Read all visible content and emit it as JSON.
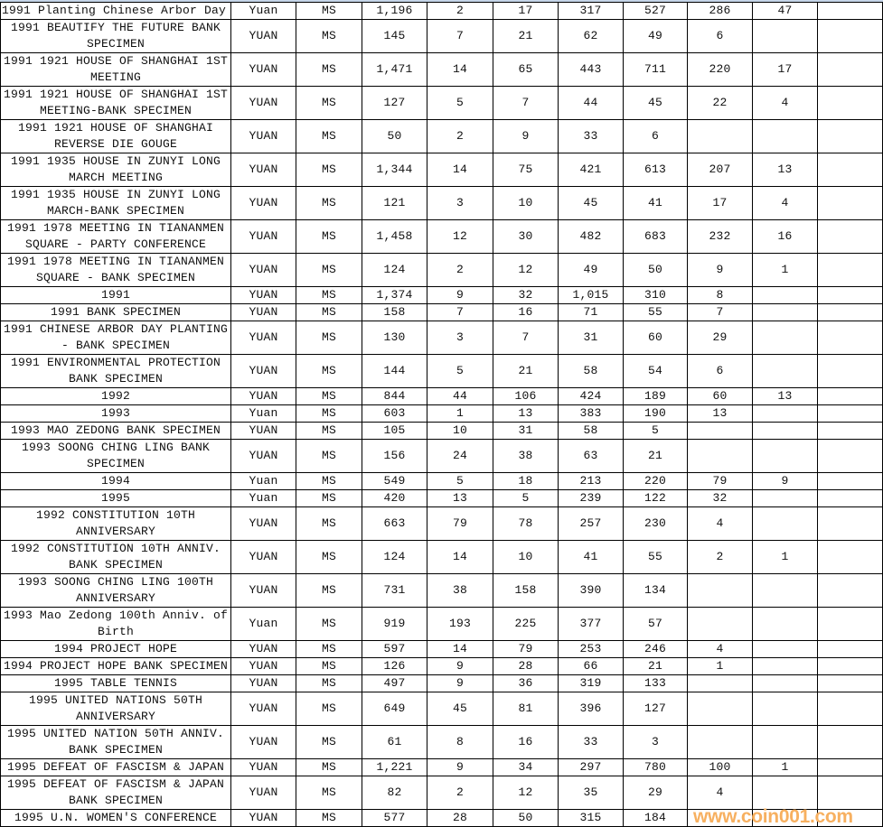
{
  "sheet": {
    "rows": [
      [
        "1991 Planting Chinese Arbor Day",
        "Yuan",
        "MS",
        "1,196",
        "2",
        "17",
        "317",
        "527",
        "286",
        "47",
        ""
      ],
      [
        "1991 BEAUTIFY THE FUTURE BANK SPECIMEN",
        "YUAN",
        "MS",
        "145",
        "7",
        "21",
        "62",
        "49",
        "6",
        "",
        ""
      ],
      [
        "1991 1921 HOUSE OF SHANGHAI 1ST MEETING",
        "YUAN",
        "MS",
        "1,471",
        "14",
        "65",
        "443",
        "711",
        "220",
        "17",
        ""
      ],
      [
        "1991 1921 HOUSE OF SHANGHAI 1ST MEETING-BANK SPECIMEN",
        "YUAN",
        "MS",
        "127",
        "5",
        "7",
        "44",
        "45",
        "22",
        "4",
        ""
      ],
      [
        "1991 1921 HOUSE OF SHANGHAI REVERSE DIE GOUGE",
        "YUAN",
        "MS",
        "50",
        "2",
        "9",
        "33",
        "6",
        "",
        "",
        ""
      ],
      [
        "1991 1935 HOUSE IN ZUNYI LONG MARCH MEETING",
        "YUAN",
        "MS",
        "1,344",
        "14",
        "75",
        "421",
        "613",
        "207",
        "13",
        ""
      ],
      [
        "1991 1935 HOUSE IN ZUNYI LONG MARCH-BANK SPECIMEN",
        "YUAN",
        "MS",
        "121",
        "3",
        "10",
        "45",
        "41",
        "17",
        "4",
        ""
      ],
      [
        "1991 1978 MEETING IN TIANANMEN SQUARE - PARTY CONFERENCE",
        "YUAN",
        "MS",
        "1,458",
        "12",
        "30",
        "482",
        "683",
        "232",
        "16",
        ""
      ],
      [
        "1991 1978 MEETING IN TIANANMEN SQUARE - BANK SPECIMEN",
        "YUAN",
        "MS",
        "124",
        "2",
        "12",
        "49",
        "50",
        "9",
        "1",
        ""
      ],
      [
        "1991",
        "YUAN",
        "MS",
        "1,374",
        "9",
        "32",
        "1,015",
        "310",
        "8",
        "",
        ""
      ],
      [
        "1991 BANK SPECIMEN",
        "YUAN",
        "MS",
        "158",
        "7",
        "16",
        "71",
        "55",
        "7",
        "",
        ""
      ],
      [
        "1991 CHINESE ARBOR DAY PLANTING - BANK SPECIMEN",
        "YUAN",
        "MS",
        "130",
        "3",
        "7",
        "31",
        "60",
        "29",
        "",
        ""
      ],
      [
        "1991 ENVIRONMENTAL PROTECTION BANK SPECIMEN",
        "YUAN",
        "MS",
        "144",
        "5",
        "21",
        "58",
        "54",
        "6",
        "",
        ""
      ],
      [
        "1992",
        "YUAN",
        "MS",
        "844",
        "44",
        "106",
        "424",
        "189",
        "60",
        "13",
        ""
      ],
      [
        "1993",
        "Yuan",
        "MS",
        "603",
        "1",
        "13",
        "383",
        "190",
        "13",
        "",
        ""
      ],
      [
        "1993 MAO ZEDONG BANK SPECIMEN",
        "YUAN",
        "MS",
        "105",
        "10",
        "31",
        "58",
        "5",
        "",
        "",
        ""
      ],
      [
        "1993 SOONG CHING LING BANK SPECIMEN",
        "YUAN",
        "MS",
        "156",
        "24",
        "38",
        "63",
        "21",
        "",
        "",
        ""
      ],
      [
        "1994",
        "Yuan",
        "MS",
        "549",
        "5",
        "18",
        "213",
        "220",
        "79",
        "9",
        ""
      ],
      [
        "1995",
        "Yuan",
        "MS",
        "420",
        "13",
        "5",
        "239",
        "122",
        "32",
        "",
        ""
      ],
      [
        "1992 CONSTITUTION 10TH ANNIVERSARY",
        "YUAN",
        "MS",
        "663",
        "79",
        "78",
        "257",
        "230",
        "4",
        "",
        ""
      ],
      [
        "1992 CONSTITUTION 10TH ANNIV. BANK SPECIMEN",
        "YUAN",
        "MS",
        "124",
        "14",
        "10",
        "41",
        "55",
        "2",
        "1",
        ""
      ],
      [
        "1993 SOONG CHING LING 100TH ANNIVERSARY",
        "YUAN",
        "MS",
        "731",
        "38",
        "158",
        "390",
        "134",
        "",
        "",
        ""
      ],
      [
        "1993 Mao Zedong 100th Anniv. of Birth",
        "Yuan",
        "MS",
        "919",
        "193",
        "225",
        "377",
        "57",
        "",
        "",
        ""
      ],
      [
        "1994 PROJECT HOPE",
        "YUAN",
        "MS",
        "597",
        "14",
        "79",
        "253",
        "246",
        "4",
        "",
        ""
      ],
      [
        "1994 PROJECT HOPE BANK SPECIMEN",
        "YUAN",
        "MS",
        "126",
        "9",
        "28",
        "66",
        "21",
        "1",
        "",
        ""
      ],
      [
        "1995 TABLE TENNIS",
        "YUAN",
        "MS",
        "497",
        "9",
        "36",
        "319",
        "133",
        "",
        "",
        ""
      ],
      [
        "1995 UNITED NATIONS 50TH ANNIVERSARY",
        "YUAN",
        "MS",
        "649",
        "45",
        "81",
        "396",
        "127",
        "",
        "",
        ""
      ],
      [
        "1995 UNITED NATION 50TH ANNIV. BANK SPECIMEN",
        "YUAN",
        "MS",
        "61",
        "8",
        "16",
        "33",
        "3",
        "",
        "",
        ""
      ],
      [
        "1995 DEFEAT OF FASCISM & JAPAN",
        "YUAN",
        "MS",
        "1,221",
        "9",
        "34",
        "297",
        "780",
        "100",
        "1",
        ""
      ],
      [
        "1995 DEFEAT OF FASCISM & JAPAN BANK SPECIMEN",
        "YUAN",
        "MS",
        "82",
        "2",
        "12",
        "35",
        "29",
        "4",
        "",
        ""
      ],
      [
        "1995 U.N. WOMEN'S CONFERENCE",
        "YUAN",
        "MS",
        "577",
        "28",
        "50",
        "315",
        "184",
        "",
        "",
        ""
      ]
    ]
  },
  "watermark": "www.coin001.com"
}
